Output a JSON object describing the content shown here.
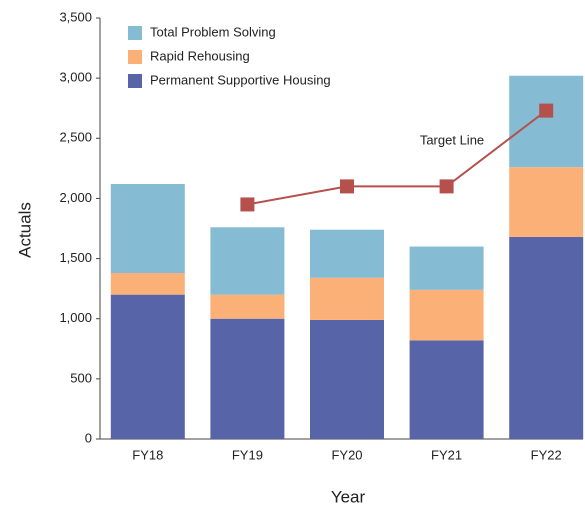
{
  "chart_data": {
    "type": "stacked-bar",
    "x_label": "Year",
    "y_label": "Actuals",
    "categories": [
      "FY18",
      "FY19",
      "FY20",
      "FY21",
      "FY22"
    ],
    "series": [
      {
        "name": "Total Problem Solving",
        "color": "#86bcd3",
        "values": [
          740,
          560,
          400,
          360,
          760
        ]
      },
      {
        "name": "Rapid Rehousing",
        "color": "#fbb078",
        "values": [
          180,
          200,
          350,
          420,
          580
        ]
      },
      {
        "name": "Permanent Supportive Housing",
        "color": "#5864a8",
        "values": [
          1200,
          1000,
          990,
          820,
          1680
        ]
      }
    ],
    "line": {
      "name": "Target Line",
      "color": "#b5504d",
      "values": [
        null,
        1950,
        2100,
        2100,
        2730
      ]
    },
    "ylim": [
      0,
      3500
    ],
    "yticks": [
      0,
      500,
      {
        "value": 1000,
        "label": "1,000"
      },
      {
        "value": 1500,
        "label": "1,500"
      },
      {
        "value": 2000,
        "label": "2,000"
      },
      {
        "value": 2500,
        "label": "2,500"
      },
      {
        "value": 3000,
        "label": "3,000"
      },
      {
        "value": 3500,
        "label": "3,500"
      }
    ],
    "legend": "top-left",
    "grid": false
  }
}
